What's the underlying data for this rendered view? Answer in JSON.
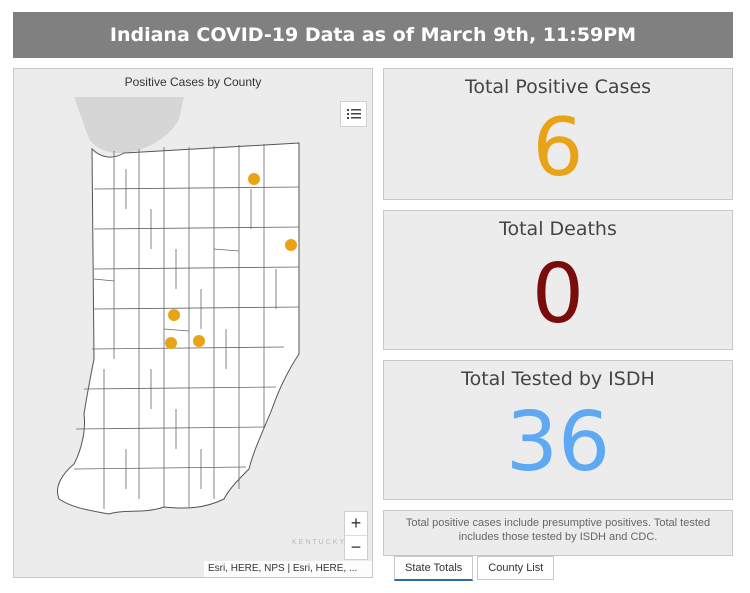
{
  "header": {
    "title": "Indiana COVID-19 Data as of March 9th, 11:59PM"
  },
  "map": {
    "title": "Positive Cases by County",
    "attribution": "Esri, HERE, NPS | Esri, HERE, ...",
    "zoom_in": "+",
    "zoom_out": "−",
    "watermark": "KENTUCKY",
    "marker_color": "#e8a317"
  },
  "stats": {
    "positive": {
      "title": "Total Positive Cases",
      "value": "6",
      "color": "#e8a317"
    },
    "deaths": {
      "title": "Total Deaths",
      "value": "0",
      "color": "#7a0c0c"
    },
    "tested": {
      "title": "Total Tested by ISDH",
      "value": "36",
      "color": "#5ea9f2"
    }
  },
  "note": "Total positive cases include presumptive positives.  Total tested includes those tested by ISDH and CDC.",
  "tabs": [
    {
      "label": "State Totals",
      "active": true
    },
    {
      "label": "County List",
      "active": false
    }
  ]
}
